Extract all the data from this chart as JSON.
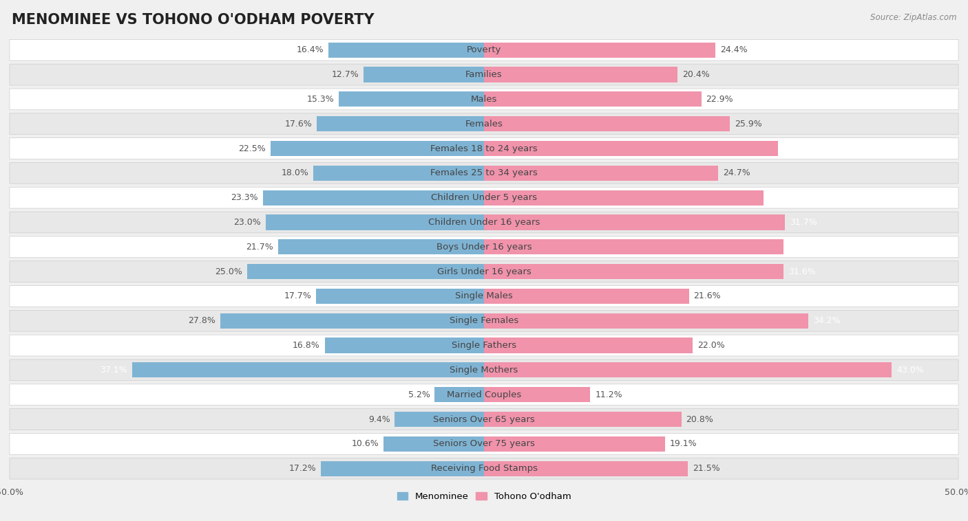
{
  "title": "MENOMINEE VS TOHONO O'ODHAM POVERTY",
  "source": "Source: ZipAtlas.com",
  "categories": [
    "Poverty",
    "Families",
    "Males",
    "Females",
    "Females 18 to 24 years",
    "Females 25 to 34 years",
    "Children Under 5 years",
    "Children Under 16 years",
    "Boys Under 16 years",
    "Girls Under 16 years",
    "Single Males",
    "Single Females",
    "Single Fathers",
    "Single Mothers",
    "Married Couples",
    "Seniors Over 65 years",
    "Seniors Over 75 years",
    "Receiving Food Stamps"
  ],
  "menominee": [
    16.4,
    12.7,
    15.3,
    17.6,
    22.5,
    18.0,
    23.3,
    23.0,
    21.7,
    25.0,
    17.7,
    27.8,
    16.8,
    37.1,
    5.2,
    9.4,
    10.6,
    17.2
  ],
  "tohono": [
    24.4,
    20.4,
    22.9,
    25.9,
    31.0,
    24.7,
    29.5,
    31.7,
    31.6,
    31.6,
    21.6,
    34.2,
    22.0,
    43.0,
    11.2,
    20.8,
    19.1,
    21.5
  ],
  "menominee_color": "#7fb3d3",
  "tohono_color": "#f093ab",
  "axis_max": 50.0,
  "background_color": "#f0f0f0",
  "row_color_odd": "#ffffff",
  "row_color_even": "#e8e8e8",
  "title_fontsize": 15,
  "label_fontsize": 9.5,
  "value_fontsize": 9,
  "legend_labels": [
    "Menominee",
    "Tohono O'odham"
  ],
  "large_val_threshold": 29.0
}
